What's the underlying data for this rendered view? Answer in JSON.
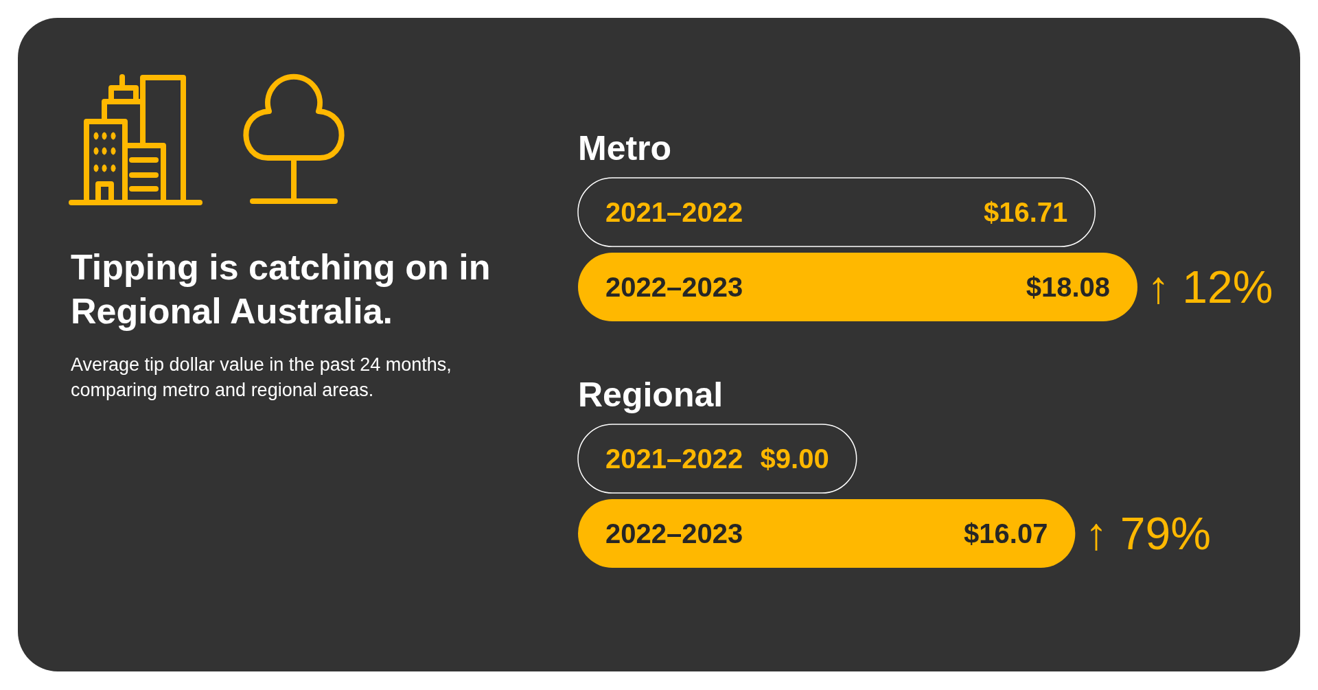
{
  "chart_data": [
    {
      "type": "other",
      "title": "Tipping is catching on in Regional Australia.",
      "subtitle": "Average tip dollar value in the past 24 months, comparing metro and regional areas."
    },
    {
      "type": "bar",
      "orientation": "horizontal",
      "title": "Metro",
      "categories": [
        "2021–2022",
        "2022–2023"
      ],
      "values": [
        16.71,
        18.08
      ],
      "colors": [
        "#333333",
        "#ffb800"
      ],
      "value_labels": [
        "$16.71",
        "$18.08"
      ],
      "annotations": [
        {
          "text": "↑ 12%",
          "x": 18.08,
          "y": "2022–2023"
        }
      ]
    },
    {
      "type": "bar",
      "orientation": "horizontal",
      "title": "Regional",
      "categories": [
        "2021–2022",
        "2022–2023"
      ],
      "values": [
        9.0,
        16.07
      ],
      "colors": [
        "#333333",
        "#ffb800"
      ],
      "value_labels": [
        "$9.00",
        "$16.07"
      ],
      "annotations": [
        {
          "text": "↑ 79%",
          "x": 16.07,
          "y": "2022–2023"
        }
      ]
    }
  ]
}
